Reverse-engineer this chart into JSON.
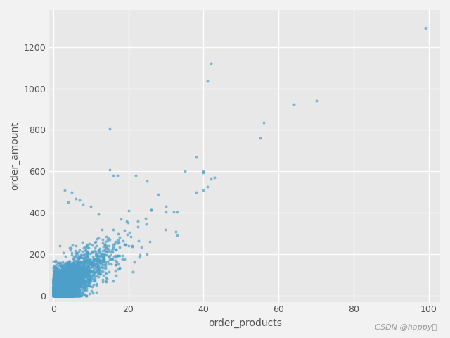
{
  "xlabel": "order_products",
  "ylabel": "order_amount",
  "plot_bg_color": "#E8E8E8",
  "fig_bg_color": "#F2F2F2",
  "dot_color": "#4C9FC8",
  "dot_size": 8,
  "dot_alpha": 0.7,
  "xlim": [
    -1,
    103
  ],
  "ylim": [
    -30,
    1380
  ],
  "xticks": [
    0,
    20,
    40,
    60,
    80,
    100
  ],
  "yticks": [
    0,
    200,
    400,
    600,
    800,
    1000,
    1200
  ],
  "watermark": "CSDN @happy吕",
  "seed": 42,
  "n_cluster": 3000,
  "outliers_x": [
    15,
    15,
    25,
    33,
    38,
    40,
    40,
    41,
    42,
    43,
    55,
    56,
    64,
    70,
    99
  ],
  "outliers_y": [
    805,
    608,
    200,
    290,
    670,
    595,
    600,
    1035,
    1120,
    570,
    760,
    835,
    925,
    940,
    1290
  ],
  "sparse_x": [
    5,
    7,
    10,
    14,
    16,
    17,
    22,
    25,
    26,
    28,
    30,
    32,
    35,
    38,
    40,
    41,
    42,
    3,
    4,
    6,
    8,
    12,
    18,
    20,
    26,
    30,
    33
  ],
  "sparse_y": [
    500,
    460,
    430,
    130,
    580,
    580,
    580,
    555,
    415,
    490,
    405,
    405,
    600,
    500,
    510,
    525,
    565,
    510,
    450,
    470,
    440,
    395,
    370,
    410,
    415,
    430,
    405
  ]
}
